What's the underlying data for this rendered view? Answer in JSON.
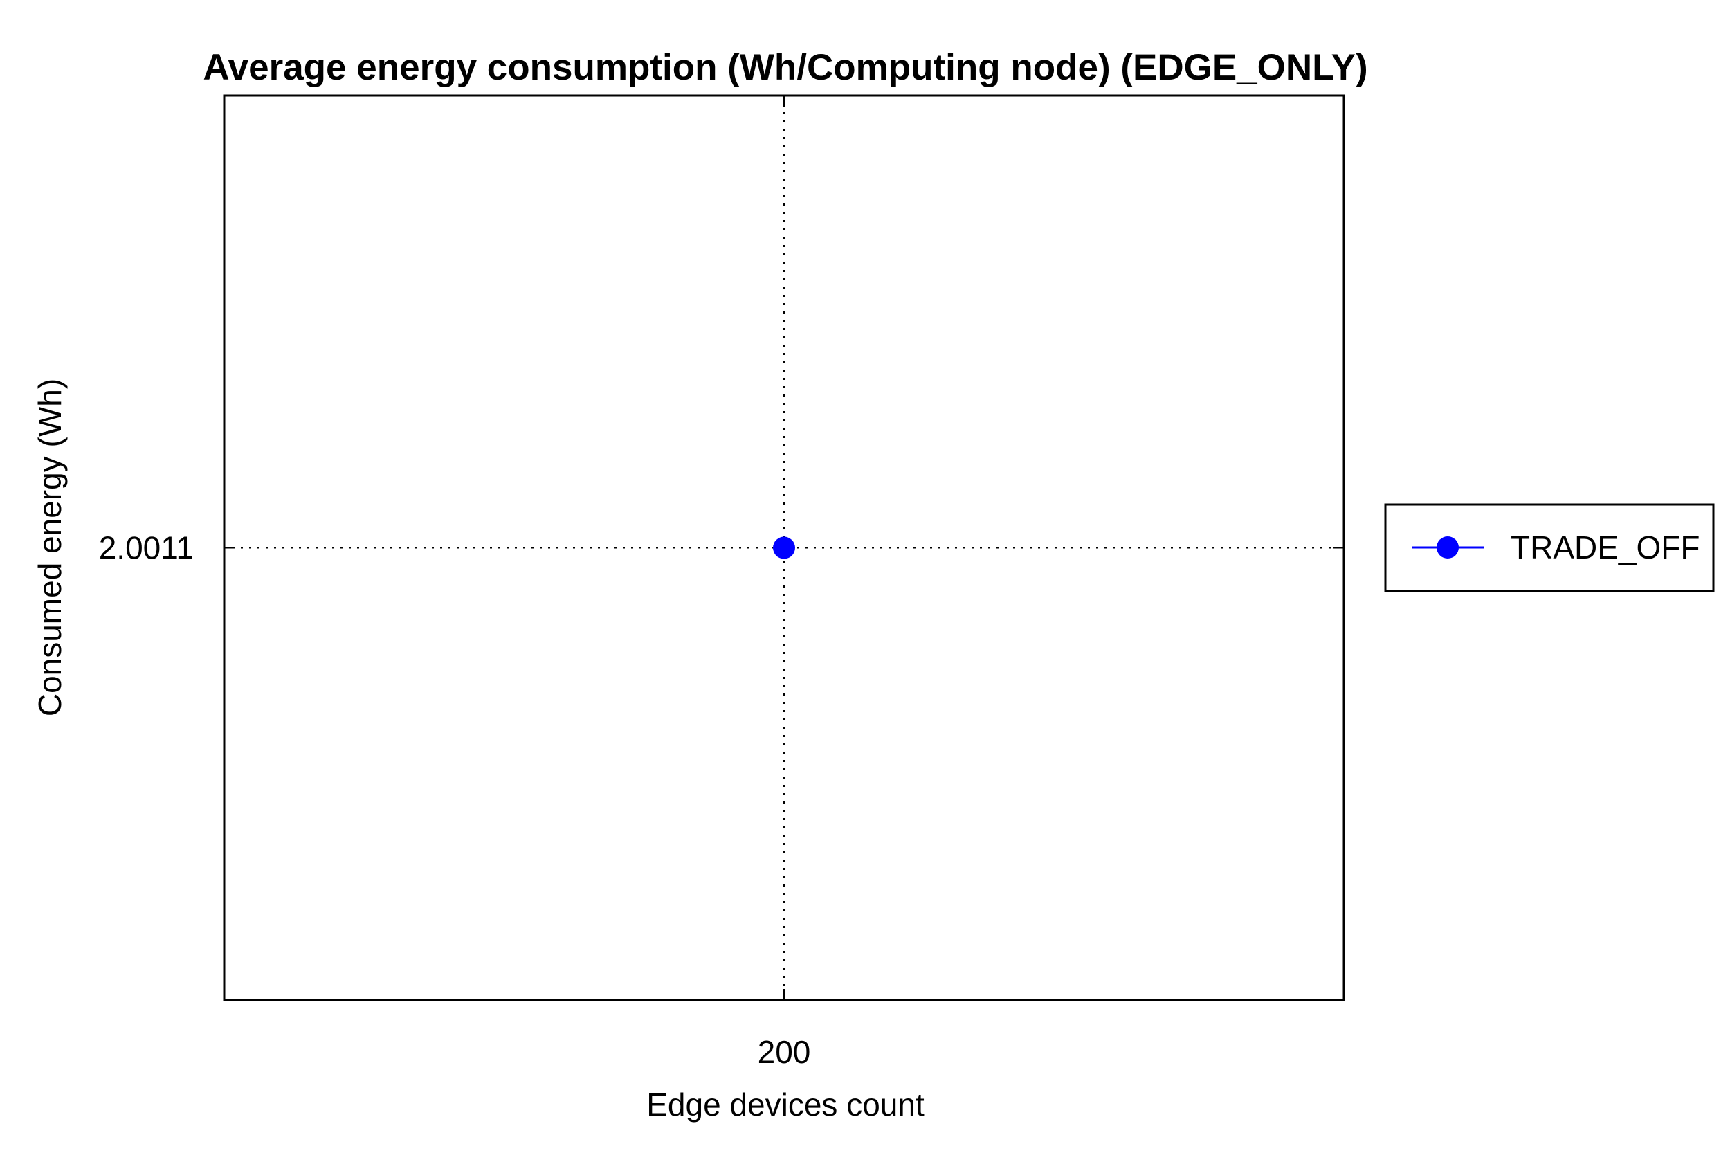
{
  "chart_data": {
    "type": "line",
    "title": "Average energy consumption (Wh/Computing node) (EDGE_ONLY)",
    "xlabel": "Edge devices count",
    "ylabel": "Consumed energy (Wh)",
    "x_ticks": [
      "200"
    ],
    "y_ticks": [
      "2.0011"
    ],
    "grid": true,
    "grid_style": "dotted",
    "legend_position": "outside-right",
    "series": [
      {
        "name": "TRADE_OFF",
        "color": "#0000ff",
        "marker": "circle",
        "x": [
          200
        ],
        "y": [
          2.0011
        ]
      }
    ]
  }
}
